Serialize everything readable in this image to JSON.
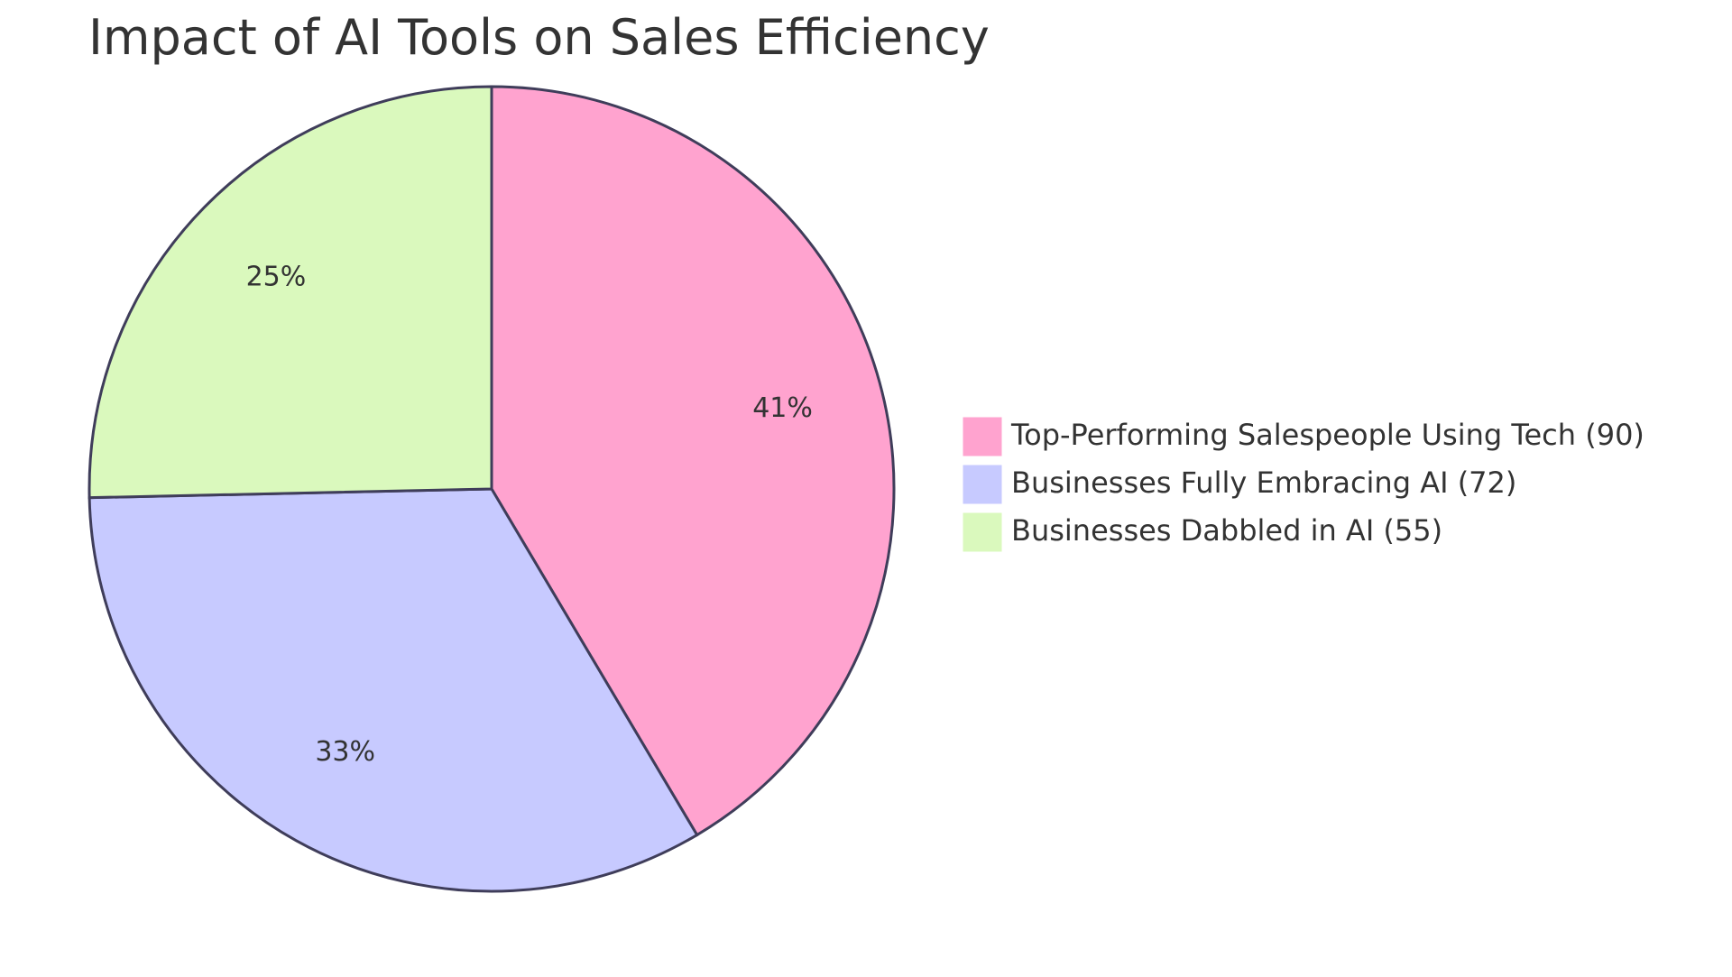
{
  "chart_data": {
    "type": "pie",
    "title": "Impact of AI Tools on Sales Efficiency",
    "slices": [
      {
        "label": "Top-Performing Salespeople Using Tech",
        "value": 90,
        "percent_label": "41%",
        "color": "#ffa3cf"
      },
      {
        "label": "Businesses Fully Embracing AI",
        "value": 72,
        "percent_label": "33%",
        "color": "#c7caff"
      },
      {
        "label": "Businesses Dabbled in AI",
        "value": 55,
        "percent_label": "25%",
        "color": "#daf9bd"
      }
    ],
    "legend_entries": [
      "Top-Performing Salespeople Using Tech (90)",
      "Businesses Fully Embracing AI (72)",
      "Businesses Dabbled in AI (55)"
    ],
    "legend_placement": "right",
    "stroke_color": "#3f3d5a"
  }
}
